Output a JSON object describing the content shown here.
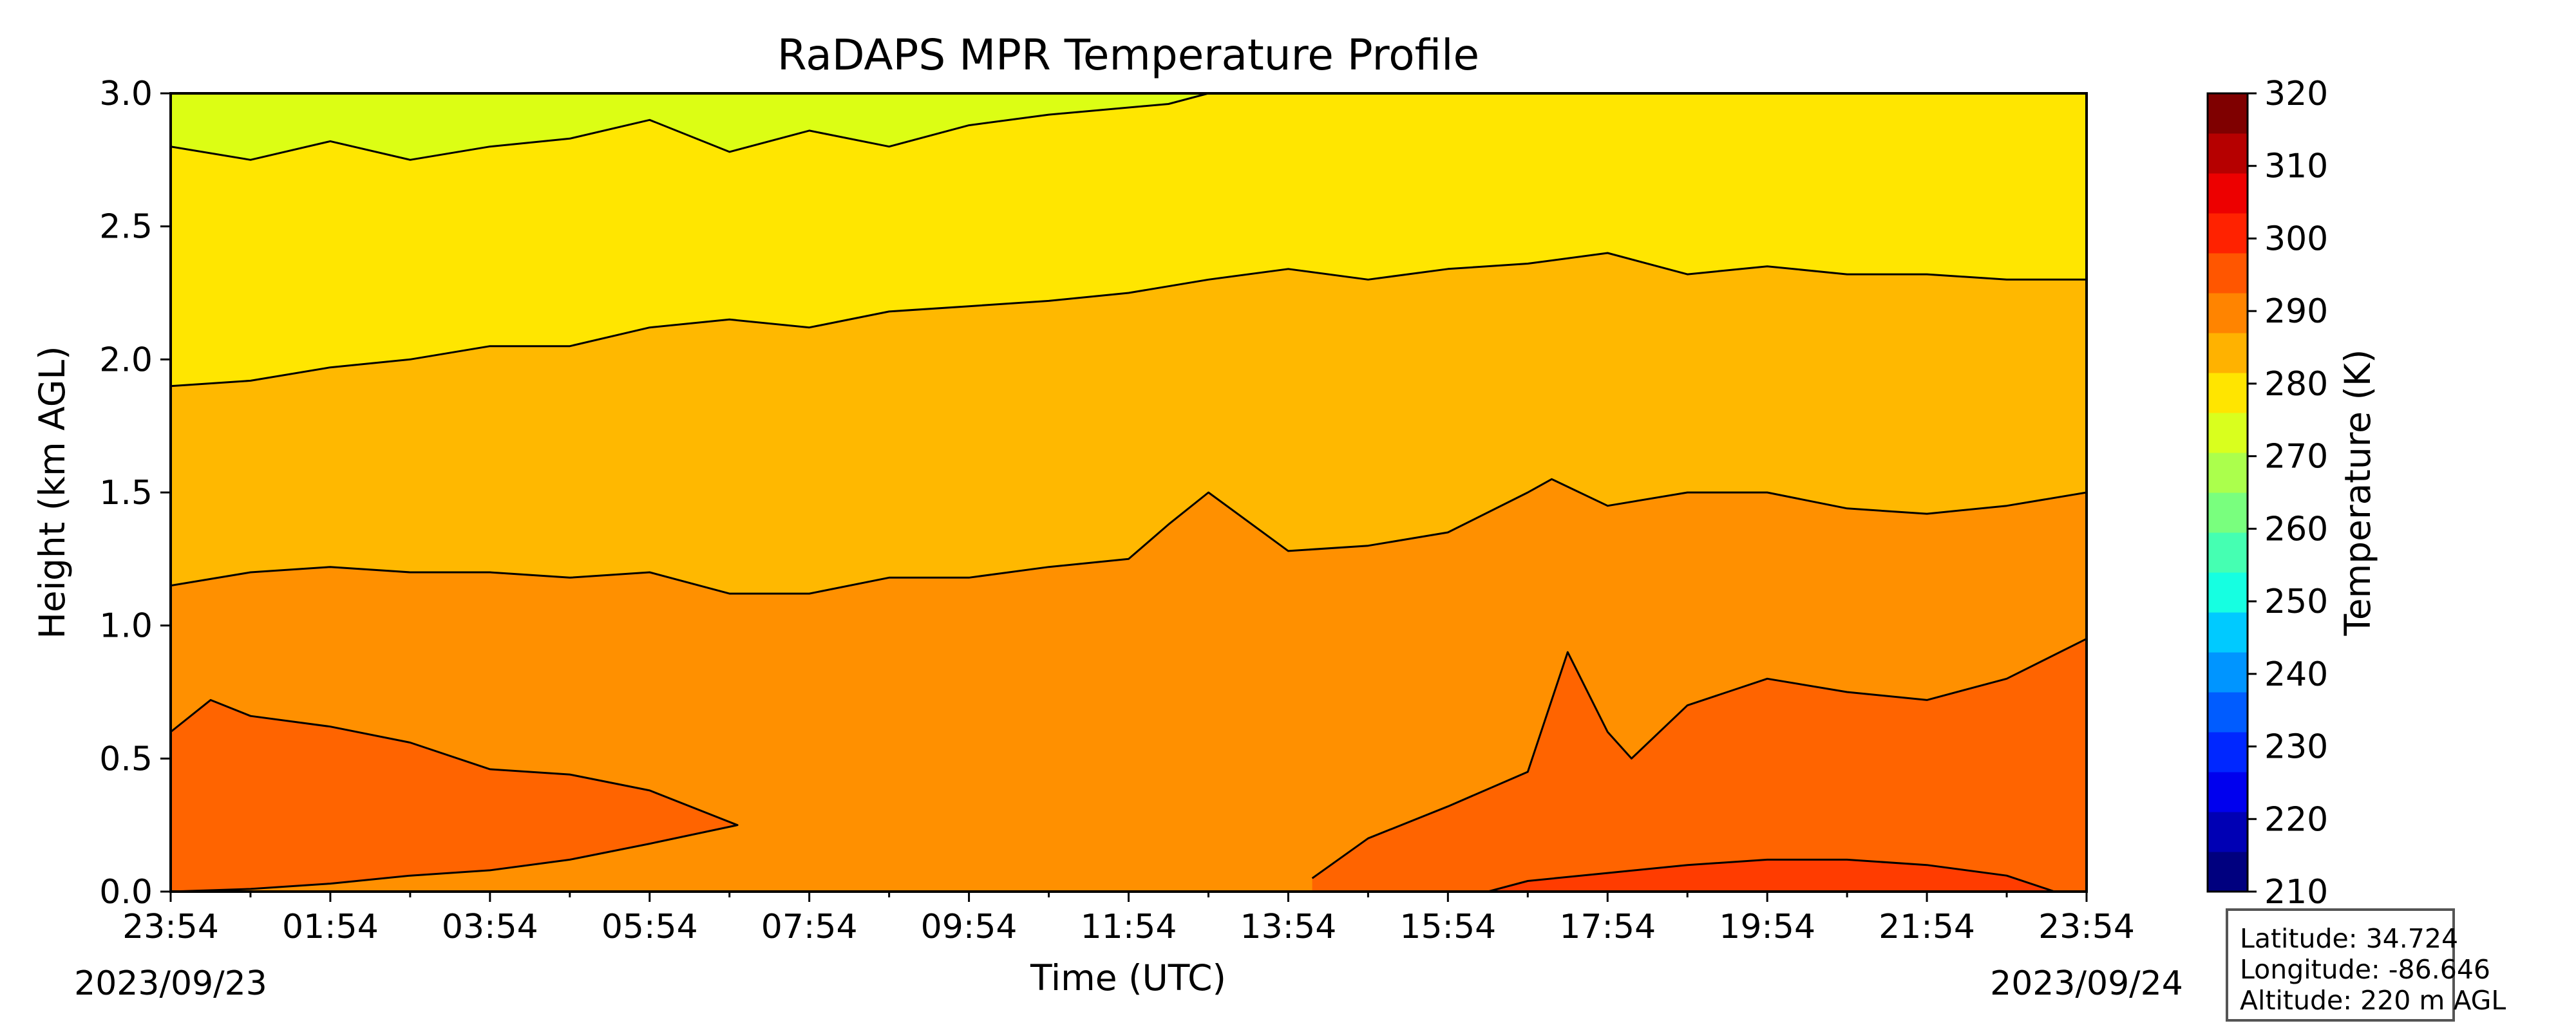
{
  "chart_data": {
    "type": "heatmap",
    "title": "RaDAPS MPR Temperature Profile",
    "xlabel": "Time (UTC)",
    "ylabel": "Height (km AGL)",
    "x_tick_labels": [
      "23:54",
      "01:54",
      "03:54",
      "05:54",
      "07:54",
      "09:54",
      "11:54",
      "13:54",
      "15:54",
      "17:54",
      "19:54",
      "21:54",
      "23:54"
    ],
    "start_date": "2023/09/23",
    "end_date": "2023/09/24",
    "ylim": [
      0.0,
      3.0
    ],
    "y_ticks": [
      0.0,
      0.5,
      1.0,
      1.5,
      2.0,
      2.5,
      3.0
    ],
    "y_tick_labels": [
      "0.0",
      "0.5",
      "1.0",
      "1.5",
      "2.0",
      "2.5",
      "3.0"
    ],
    "colorbar": {
      "label": "Temperature (K)",
      "range": [
        210,
        320
      ],
      "ticks": [
        210,
        220,
        230,
        240,
        250,
        260,
        270,
        280,
        290,
        300,
        310,
        320
      ],
      "tick_labels": [
        "210",
        "220",
        "230",
        "240",
        "250",
        "260",
        "270",
        "280",
        "290",
        "300",
        "310",
        "320"
      ],
      "colors": [
        "#00007f",
        "#0000b4",
        "#0000ee",
        "#0027ff",
        "#005cff",
        "#0095ff",
        "#00caff",
        "#16ffe1",
        "#45ffb2",
        "#79ff7e",
        "#abff4c",
        "#d9ff1e",
        "#ffe500",
        "#ffb200",
        "#ff8400",
        "#ff5600",
        "#ff2200",
        "#ed0000",
        "#b60000",
        "#7f0000"
      ]
    },
    "band_colors": {
      "above_2_contour": "#dcfe14",
      "between_1_and_2": "#ffe600",
      "between_0_and_1": "#ffb800",
      "between_lower_contours": "#ff9000",
      "warm_lower": "#ff6400",
      "warmest": "#ff3c00"
    },
    "contours": [
      {
        "name": "upper",
        "hours": [
          0,
          1,
          2,
          3,
          4,
          5,
          6,
          7,
          8,
          9,
          10,
          11,
          12.5,
          13
        ],
        "km": [
          2.8,
          2.75,
          2.82,
          2.75,
          2.8,
          2.83,
          2.9,
          2.78,
          2.86,
          2.8,
          2.88,
          2.92,
          2.96,
          3.0
        ]
      },
      {
        "name": "middle",
        "hours": [
          0,
          1,
          2,
          3,
          4,
          5,
          6,
          7,
          8,
          9,
          10,
          11,
          12,
          13,
          14,
          15,
          16,
          17,
          18,
          19,
          20,
          21,
          22,
          23,
          24
        ],
        "km": [
          1.9,
          1.92,
          1.97,
          2.0,
          2.05,
          2.05,
          2.12,
          2.15,
          2.12,
          2.18,
          2.2,
          2.22,
          2.25,
          2.3,
          2.34,
          2.3,
          2.34,
          2.36,
          2.4,
          2.32,
          2.35,
          2.32,
          2.32,
          2.3,
          2.3
        ]
      },
      {
        "name": "lower",
        "hours": [
          0,
          1,
          2,
          3,
          4,
          5,
          6,
          7,
          8,
          9,
          10,
          11,
          12,
          12.5,
          13,
          14,
          15,
          16,
          17,
          17.3,
          18,
          19,
          20,
          21,
          22,
          23,
          24
        ],
        "km": [
          1.15,
          1.2,
          1.22,
          1.2,
          1.2,
          1.18,
          1.2,
          1.12,
          1.12,
          1.18,
          1.18,
          1.22,
          1.25,
          1.38,
          1.5,
          1.28,
          1.3,
          1.35,
          1.5,
          1.55,
          1.45,
          1.5,
          1.5,
          1.44,
          1.42,
          1.45,
          1.5
        ]
      },
      {
        "name": "warm-morning",
        "hours": [
          0,
          0.5,
          1,
          2,
          3,
          4,
          5,
          6,
          7.1,
          6,
          5,
          4,
          3,
          2,
          1,
          0
        ],
        "km": [
          0.6,
          0.72,
          0.66,
          0.62,
          0.56,
          0.46,
          0.44,
          0.38,
          0.25,
          0.18,
          0.12,
          0.08,
          0.06,
          0.03,
          0.01,
          0.0
        ]
      },
      {
        "name": "warm-afternoon",
        "hours": [
          14.3,
          15,
          16,
          17,
          17.5,
          18,
          18.3,
          19,
          19.5,
          20,
          21,
          22,
          23,
          24
        ],
        "km": [
          0.05,
          0.2,
          0.32,
          0.45,
          0.9,
          0.6,
          0.5,
          0.7,
          0.75,
          0.8,
          0.75,
          0.72,
          0.8,
          0.95
        ]
      },
      {
        "name": "warmest-evening",
        "hours": [
          16.5,
          17,
          18,
          19,
          20,
          21,
          22,
          23,
          23.6
        ],
        "km": [
          0.0,
          0.04,
          0.07,
          0.1,
          0.12,
          0.12,
          0.1,
          0.06,
          0.0
        ]
      }
    ]
  },
  "station_info": {
    "latitude": "Latitude: 34.724",
    "longitude": "Longitude: -86.646",
    "altitude": "Altitude: 220 m AGL"
  }
}
